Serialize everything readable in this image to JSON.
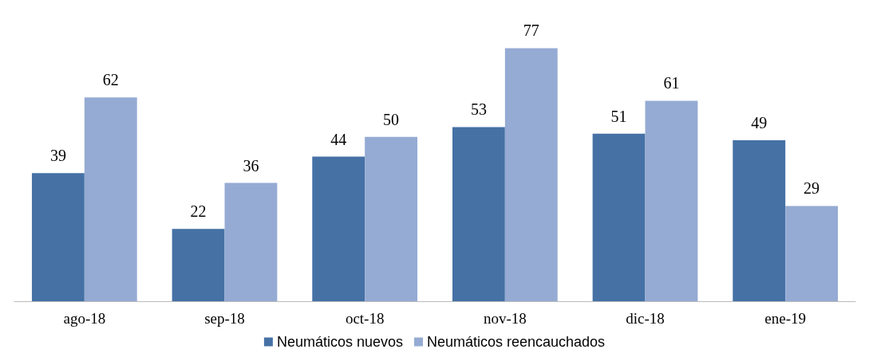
{
  "chart_data": {
    "type": "bar",
    "categories": [
      "ago-18",
      "sep-18",
      "oct-18",
      "nov-18",
      "dic-18",
      "ene-19"
    ],
    "series": [
      {
        "name": "Neumáticos nuevos",
        "color": "#4571a5",
        "values": [
          39,
          22,
          44,
          53,
          51,
          49
        ]
      },
      {
        "name": "Neumáticos reencauchados",
        "color": "#95abd3",
        "values": [
          62,
          36,
          50,
          77,
          61,
          29
        ]
      }
    ],
    "data_labels": true,
    "legend": "bottom",
    "grid": false
  }
}
